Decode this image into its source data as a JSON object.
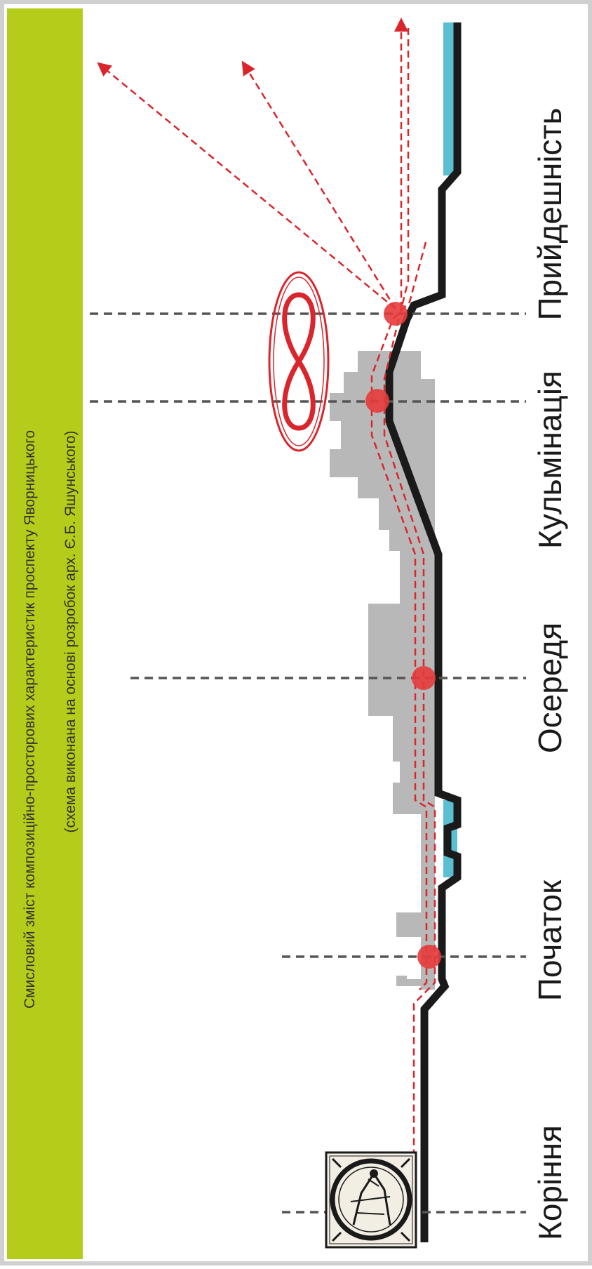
{
  "title": "Смисловий зміст композиційно-просторових характеристик проспекту Яворницького",
  "subtitle": "(схема виконана на основі розробок арх. Є.Б. Яшунського)",
  "stages": [
    {
      "name": "stage-koriння",
      "label": "Коріння"
    },
    {
      "name": "stage-pochatok",
      "label": "Початок"
    },
    {
      "name": "stage-oseredya",
      "label": "Осередя"
    },
    {
      "name": "stage-kulminatsiya",
      "label": "Кульмінація"
    },
    {
      "name": "stage-pryydeshnist",
      "label": "Прийдешність"
    }
  ],
  "colors": {
    "band": "#b5cc1a",
    "frame": "#d0d0d0",
    "profile": "#1a1a1a",
    "water": "#5bbfd1",
    "buildings": "#b8b8b8",
    "path": "#d9262c",
    "marker": "#e53b3b",
    "guides": "#555555"
  },
  "icons": [
    "woodcut-engraving-icon",
    "infinity-icon",
    "direction-arrow-icon"
  ]
}
